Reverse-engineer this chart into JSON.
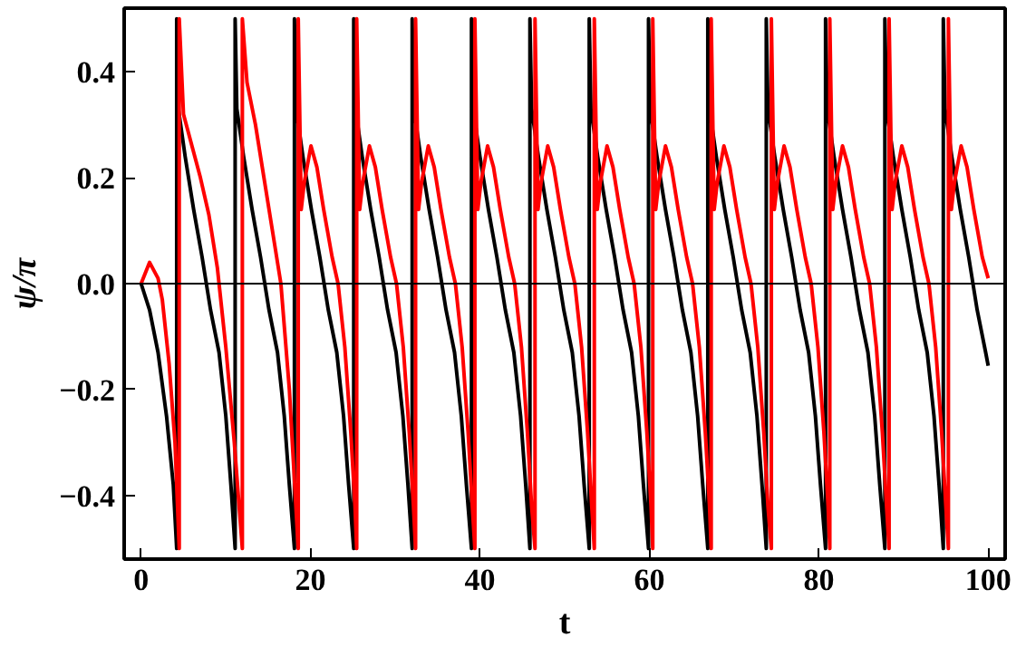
{
  "chart_data": {
    "type": "line",
    "xlabel": "t",
    "ylabel": "ψ/π",
    "xlim": [
      -2,
      102
    ],
    "ylim": [
      -0.52,
      0.52
    ],
    "xticks": [
      0,
      20,
      40,
      60,
      80,
      100
    ],
    "yticks": [
      {
        "value": -0.4,
        "label": "−0.4"
      },
      {
        "value": -0.2,
        "label": "−0.2"
      },
      {
        "value": 0,
        "label": "0.0"
      },
      {
        "value": 0.2,
        "label": "0.2"
      },
      {
        "value": 0.4,
        "label": "0.4"
      }
    ],
    "grid": false,
    "line_style": "solid",
    "marker": "none",
    "ref_lines": [
      {
        "axis": "y",
        "value": 0,
        "color": "#000000"
      }
    ],
    "series": [
      {
        "color": "#000000",
        "x": [
          0,
          1,
          2,
          3,
          3.8,
          4.2,
          4.2,
          4.4,
          5.2,
          6.2,
          7.2,
          8.2,
          9.2,
          10,
          10.6,
          11.1,
          11.1,
          11.3,
          12.1,
          13.1,
          14.1,
          15.1,
          16.1,
          16.9,
          17.5,
          18.1,
          18.1,
          18.3,
          19.1,
          20.1,
          21.1,
          22.1,
          23.1,
          23.9,
          24.5,
          25.1,
          25.1,
          25.3,
          26.1,
          27.1,
          28.1,
          29.1,
          30.1,
          30.9,
          31.5,
          32,
          32,
          32.2,
          33,
          34,
          35,
          36,
          37,
          37.8,
          38.4,
          39,
          39,
          39.2,
          40,
          41,
          42,
          43,
          44,
          44.8,
          45.4,
          45.9,
          45.9,
          46.1,
          46.9,
          47.9,
          48.9,
          49.9,
          50.9,
          51.7,
          52.3,
          52.9,
          52.9,
          53.1,
          53.9,
          54.9,
          55.9,
          56.9,
          57.9,
          58.7,
          59.3,
          59.9,
          59.9,
          60.1,
          60.9,
          61.9,
          62.9,
          63.9,
          64.9,
          65.7,
          66.3,
          66.9,
          66.9,
          67.1,
          67.9,
          68.9,
          69.9,
          70.9,
          71.9,
          72.7,
          73.3,
          73.8,
          73.8,
          74,
          74.8,
          75.8,
          76.8,
          77.8,
          78.8,
          79.6,
          80.2,
          80.8,
          80.8,
          81,
          81.8,
          82.8,
          83.8,
          84.8,
          85.8,
          86.6,
          87.2,
          87.8,
          87.8,
          88,
          88.8,
          89.8,
          90.8,
          91.8,
          92.8,
          93.6,
          94.2,
          94.7,
          94.7,
          94.9,
          95.7,
          96.7,
          97.7,
          98.7,
          99.7,
          100
        ],
        "values": [
          0,
          -0.05,
          -0.13,
          -0.25,
          -0.38,
          -0.5,
          0.5,
          0.33,
          0.24,
          0.14,
          0.05,
          -0.05,
          -0.13,
          -0.25,
          -0.38,
          -0.5,
          0.5,
          0.33,
          0.24,
          0.14,
          0.05,
          -0.05,
          -0.13,
          -0.25,
          -0.38,
          -0.5,
          0.5,
          0.33,
          0.24,
          0.14,
          0.05,
          -0.05,
          -0.13,
          -0.25,
          -0.38,
          -0.5,
          0.5,
          0.33,
          0.24,
          0.14,
          0.05,
          -0.05,
          -0.13,
          -0.25,
          -0.38,
          -0.5,
          0.5,
          0.33,
          0.24,
          0.14,
          0.05,
          -0.05,
          -0.13,
          -0.25,
          -0.38,
          -0.5,
          0.5,
          0.33,
          0.24,
          0.14,
          0.05,
          -0.05,
          -0.13,
          -0.25,
          -0.38,
          -0.5,
          0.5,
          0.33,
          0.24,
          0.14,
          0.05,
          -0.05,
          -0.13,
          -0.25,
          -0.38,
          -0.5,
          0.5,
          0.33,
          0.24,
          0.14,
          0.05,
          -0.05,
          -0.13,
          -0.25,
          -0.38,
          -0.5,
          0.5,
          0.33,
          0.24,
          0.14,
          0.05,
          -0.05,
          -0.13,
          -0.25,
          -0.38,
          -0.5,
          0.5,
          0.33,
          0.24,
          0.14,
          0.05,
          -0.05,
          -0.13,
          -0.25,
          -0.38,
          -0.5,
          0.5,
          0.33,
          0.24,
          0.14,
          0.05,
          -0.05,
          -0.13,
          -0.25,
          -0.38,
          -0.5,
          0.5,
          0.33,
          0.24,
          0.14,
          0.05,
          -0.05,
          -0.13,
          -0.25,
          -0.38,
          -0.5,
          0.5,
          0.33,
          0.24,
          0.14,
          0.05,
          -0.05,
          -0.13,
          -0.25,
          -0.38,
          -0.5,
          0.5,
          0.33,
          0.24,
          0.14,
          0.05,
          -0.05,
          -0.13,
          -0.155
        ]
      },
      {
        "color": "#ff0000",
        "x": [
          0,
          1,
          2,
          2.5,
          3.3,
          4,
          4.5,
          4.5,
          5,
          6,
          7,
          8,
          9,
          10,
          11,
          11.95,
          11.95,
          12.5,
          13.5,
          14.5,
          15.5,
          16.5,
          17.5,
          18.55,
          18.55,
          18.9,
          19.25,
          20.05,
          20.75,
          21.55,
          22.55,
          23.25,
          24.05,
          24.75,
          25.25,
          25.45,
          25.45,
          25.8,
          26.15,
          26.95,
          27.65,
          28.45,
          29.45,
          30.15,
          30.95,
          31.65,
          32.15,
          32.4,
          32.4,
          32.75,
          33.1,
          33.9,
          34.6,
          35.4,
          36.4,
          37.1,
          37.9,
          38.6,
          39.1,
          39.4,
          39.4,
          39.75,
          40.1,
          40.9,
          41.6,
          42.4,
          43.4,
          44.1,
          44.9,
          45.6,
          46.1,
          46.5,
          46.5,
          46.85,
          47.2,
          48,
          48.7,
          49.5,
          50.5,
          51.2,
          52,
          52.7,
          53.2,
          53.5,
          53.5,
          53.85,
          54.2,
          55,
          55.7,
          56.5,
          57.5,
          58.2,
          59,
          59.7,
          60.2,
          60.4,
          60.4,
          60.75,
          61.1,
          61.9,
          62.6,
          63.4,
          64.4,
          65.1,
          65.9,
          66.6,
          67.1,
          67.3,
          67.3,
          67.65,
          68,
          68.8,
          69.5,
          70.3,
          71.3,
          72,
          72.8,
          73.5,
          74,
          74.4,
          74.4,
          74.75,
          75.1,
          75.9,
          76.6,
          77.4,
          78.4,
          79.1,
          79.9,
          80.6,
          81.1,
          81.3,
          81.3,
          81.65,
          82,
          82.8,
          83.5,
          84.3,
          85.3,
          86,
          86.8,
          87.5,
          88,
          88.3,
          88.3,
          88.65,
          89,
          89.8,
          90.5,
          91.3,
          92.3,
          93,
          93.8,
          94.5,
          95,
          95.3,
          95.3,
          95.65,
          96,
          96.8,
          97.5,
          98.3,
          99.3,
          100
        ],
        "values": [
          0,
          0.04,
          0.01,
          -0.03,
          -0.15,
          -0.3,
          -0.5,
          0.5,
          0.32,
          0.26,
          0.2,
          0.13,
          0.03,
          -0.12,
          -0.3,
          -0.5,
          0.5,
          0.38,
          0.3,
          0.2,
          0.1,
          0,
          -0.2,
          -0.5,
          0.5,
          0.14,
          0.19,
          0.26,
          0.22,
          0.14,
          0.05,
          0,
          -0.12,
          -0.28,
          -0.42,
          -0.5,
          0.5,
          0.14,
          0.19,
          0.26,
          0.22,
          0.14,
          0.05,
          0,
          -0.12,
          -0.28,
          -0.42,
          -0.5,
          0.5,
          0.14,
          0.19,
          0.26,
          0.22,
          0.14,
          0.05,
          0,
          -0.12,
          -0.28,
          -0.42,
          -0.5,
          0.5,
          0.14,
          0.19,
          0.26,
          0.22,
          0.14,
          0.05,
          0,
          -0.12,
          -0.28,
          -0.42,
          -0.5,
          0.5,
          0.14,
          0.19,
          0.26,
          0.22,
          0.14,
          0.05,
          0,
          -0.12,
          -0.28,
          -0.42,
          -0.5,
          0.5,
          0.14,
          0.19,
          0.26,
          0.22,
          0.14,
          0.05,
          0,
          -0.12,
          -0.28,
          -0.42,
          -0.5,
          0.5,
          0.14,
          0.19,
          0.26,
          0.22,
          0.14,
          0.05,
          0,
          -0.12,
          -0.28,
          -0.42,
          -0.5,
          0.5,
          0.14,
          0.19,
          0.26,
          0.22,
          0.14,
          0.05,
          0,
          -0.12,
          -0.28,
          -0.42,
          -0.5,
          0.5,
          0.14,
          0.19,
          0.26,
          0.22,
          0.14,
          0.05,
          0,
          -0.12,
          -0.28,
          -0.42,
          -0.5,
          0.5,
          0.14,
          0.19,
          0.26,
          0.22,
          0.14,
          0.05,
          0,
          -0.12,
          -0.28,
          -0.42,
          -0.5,
          0.5,
          0.14,
          0.19,
          0.26,
          0.22,
          0.14,
          0.05,
          0,
          -0.12,
          -0.28,
          -0.42,
          -0.5,
          0.5,
          0.14,
          0.19,
          0.26,
          0.22,
          0.14,
          0.05,
          0.01
        ]
      }
    ]
  }
}
